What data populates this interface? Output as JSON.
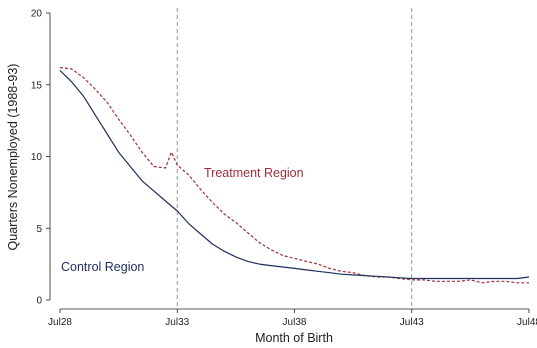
{
  "chart_data": {
    "type": "line",
    "xlabel": "Month of Birth",
    "ylabel": "Quarters Nonemployed (1988-93)",
    "x_domain": [
      "1928-07",
      "1948-07"
    ],
    "ylim": [
      0,
      20
    ],
    "y_ticks": [
      0,
      5,
      10,
      15,
      20
    ],
    "y_tick_labels": [
      "0",
      "5",
      "10",
      "15",
      "20"
    ],
    "x_ticks": [
      "1928-07",
      "1933-07",
      "1938-07",
      "1943-07",
      "1948-07"
    ],
    "x_tick_labels": [
      "Jul28",
      "Jul33",
      "Jul38",
      "Jul43",
      "Jul48"
    ],
    "reference_lines_x": [
      "1933-07",
      "1943-07"
    ],
    "grid": false,
    "annotations": [
      {
        "text": "Treatment Region",
        "color": "#a03038"
      },
      {
        "text": "Control Region",
        "color": "#1f2f5f"
      }
    ],
    "series": [
      {
        "name": "Treatment Region",
        "color": "#a03038",
        "style": "dashed",
        "x": [
          "1928-07",
          "1929-01",
          "1929-07",
          "1930-01",
          "1930-07",
          "1931-01",
          "1931-07",
          "1932-01",
          "1932-07",
          "1933-01",
          "1933-04",
          "1933-07",
          "1934-01",
          "1934-07",
          "1935-01",
          "1935-07",
          "1936-01",
          "1936-07",
          "1937-01",
          "1937-07",
          "1938-01",
          "1938-07",
          "1939-01",
          "1939-07",
          "1940-01",
          "1940-07",
          "1941-01",
          "1941-07",
          "1942-01",
          "1942-07",
          "1943-01",
          "1943-07",
          "1944-01",
          "1944-07",
          "1945-01",
          "1945-07",
          "1946-01",
          "1946-07",
          "1947-01",
          "1947-07",
          "1948-01",
          "1948-07"
        ],
        "values": [
          16.2,
          16.1,
          15.5,
          14.7,
          13.8,
          12.6,
          11.5,
          10.3,
          9.3,
          9.2,
          10.3,
          9.4,
          8.7,
          7.7,
          6.8,
          6.0,
          5.4,
          4.7,
          4.0,
          3.5,
          3.1,
          2.9,
          2.7,
          2.5,
          2.2,
          2.0,
          1.9,
          1.7,
          1.6,
          1.6,
          1.5,
          1.4,
          1.4,
          1.3,
          1.3,
          1.3,
          1.4,
          1.2,
          1.3,
          1.3,
          1.2,
          1.2
        ]
      },
      {
        "name": "Control Region",
        "color": "#1f2f5f",
        "style": "solid",
        "x": [
          "1928-07",
          "1929-01",
          "1929-07",
          "1930-01",
          "1930-07",
          "1931-01",
          "1931-07",
          "1932-01",
          "1932-07",
          "1933-01",
          "1933-07",
          "1934-01",
          "1934-07",
          "1935-01",
          "1935-07",
          "1936-01",
          "1936-07",
          "1937-01",
          "1937-07",
          "1938-01",
          "1938-07",
          "1939-01",
          "1939-07",
          "1940-01",
          "1940-07",
          "1941-01",
          "1941-07",
          "1942-01",
          "1942-07",
          "1943-01",
          "1943-07",
          "1944-01",
          "1944-07",
          "1945-01",
          "1945-07",
          "1946-01",
          "1946-07",
          "1947-01",
          "1947-07",
          "1948-01",
          "1948-07"
        ],
        "values": [
          16.0,
          15.2,
          14.2,
          12.9,
          11.6,
          10.3,
          9.3,
          8.3,
          7.6,
          6.9,
          6.2,
          5.3,
          4.6,
          3.9,
          3.4,
          3.0,
          2.7,
          2.5,
          2.4,
          2.3,
          2.2,
          2.1,
          2.0,
          1.9,
          1.8,
          1.75,
          1.7,
          1.65,
          1.6,
          1.55,
          1.5,
          1.5,
          1.5,
          1.5,
          1.5,
          1.5,
          1.5,
          1.5,
          1.5,
          1.5,
          1.6
        ]
      }
    ]
  }
}
